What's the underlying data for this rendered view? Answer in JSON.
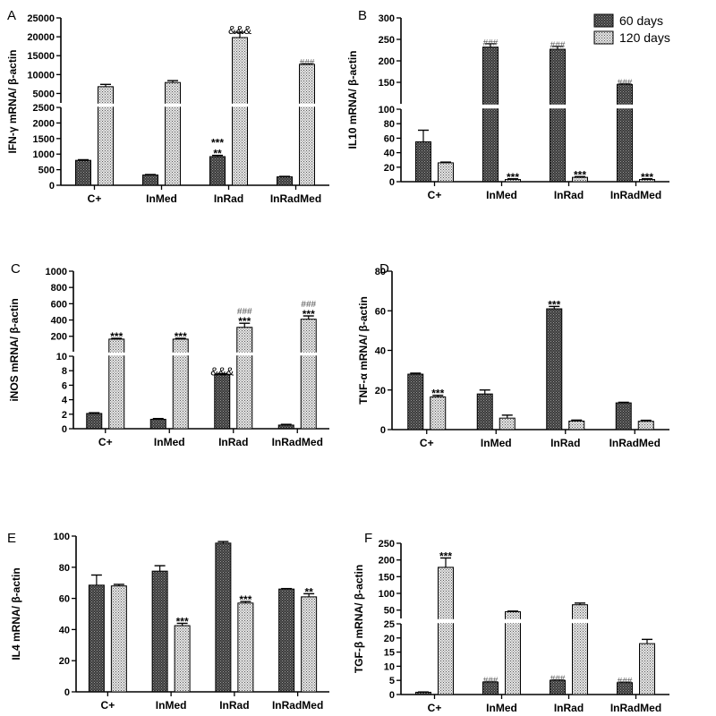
{
  "legend": [
    {
      "label": "60 days",
      "pattern": "dark"
    },
    {
      "label": "120 days",
      "pattern": "light"
    }
  ],
  "chart_data": [
    {
      "panel": "A",
      "type": "bar",
      "ylabel": "IFN-γ mRNA/ β-actin",
      "categories": [
        "C+",
        "InMed",
        "InRad",
        "InRadMed"
      ],
      "series": [
        {
          "name": "60 days",
          "values": [
            800,
            330,
            920,
            270
          ],
          "errors": [
            20,
            15,
            40,
            15
          ]
        },
        {
          "name": "120 days",
          "values": [
            6800,
            7900,
            19800,
            12700
          ],
          "errors": [
            600,
            500,
            1400,
            200
          ]
        }
      ],
      "axis_break": {
        "lower": [
          0,
          2500
        ],
        "upper": [
          2500,
          25000
        ]
      },
      "yticks_lower": [
        0,
        500,
        1000,
        1500,
        2000,
        2500
      ],
      "yticks_upper": [
        5000,
        10000,
        15000,
        20000,
        25000
      ],
      "annotations": [
        {
          "category": "InRad",
          "series": "60 days",
          "lines": [
            "***",
            "**"
          ]
        },
        {
          "category": "InRad",
          "series": "120 days",
          "lines": [
            "&&&"
          ]
        },
        {
          "category": "InRadMed",
          "series": "120 days",
          "lines": [
            "###"
          ]
        }
      ]
    },
    {
      "panel": "B",
      "type": "bar",
      "ylabel": "IL10 mRNA/ β-actin",
      "categories": [
        "C+",
        "InMed",
        "InRad",
        "InRadMed"
      ],
      "series": [
        {
          "name": "60 days",
          "values": [
            55,
            232,
            227,
            145
          ],
          "errors": [
            16,
            8,
            7,
            2
          ]
        },
        {
          "name": "120 days",
          "values": [
            26,
            3,
            6,
            3
          ],
          "errors": [
            1,
            1,
            1,
            1
          ]
        }
      ],
      "axis_break": {
        "lower": [
          0,
          100
        ],
        "upper": [
          100,
          300
        ]
      },
      "yticks_lower": [
        0,
        20,
        40,
        60,
        80,
        100
      ],
      "yticks_upper": [
        150,
        200,
        250,
        300
      ],
      "annotations": [
        {
          "category": "InMed",
          "series": "60 days",
          "lines": [
            "###"
          ]
        },
        {
          "category": "InMed",
          "series": "120 days",
          "lines": [
            "***"
          ]
        },
        {
          "category": "InRad",
          "series": "60 days",
          "lines": [
            "###"
          ]
        },
        {
          "category": "InRad",
          "series": "120 days",
          "lines": [
            "***"
          ]
        },
        {
          "category": "InRadMed",
          "series": "60 days",
          "lines": [
            "###"
          ]
        },
        {
          "category": "InRadMed",
          "series": "120 days",
          "lines": [
            "***"
          ]
        }
      ]
    },
    {
      "panel": "C",
      "type": "bar",
      "ylabel": "iNOS mRNA/ β-actin",
      "categories": [
        "C+",
        "InMed",
        "InRad",
        "InRadMed"
      ],
      "series": [
        {
          "name": "60 days",
          "values": [
            2.1,
            1.3,
            7.5,
            0.5
          ],
          "errors": [
            0.1,
            0.1,
            0.1,
            0.1
          ]
        },
        {
          "name": "120 days",
          "values": [
            165,
            165,
            310,
            410
          ],
          "errors": [
            10,
            10,
            50,
            40
          ]
        }
      ],
      "axis_break": {
        "lower": [
          0,
          10
        ],
        "upper": [
          10,
          1000
        ]
      },
      "yticks_lower": [
        0,
        2,
        4,
        6,
        8,
        10
      ],
      "yticks_upper": [
        200,
        400,
        600,
        800,
        1000
      ],
      "annotations": [
        {
          "category": "C+",
          "series": "120 days",
          "lines": [
            "***"
          ]
        },
        {
          "category": "InMed",
          "series": "120 days",
          "lines": [
            "***"
          ]
        },
        {
          "category": "InRad",
          "series": "60 days",
          "lines": [
            "&&&"
          ]
        },
        {
          "category": "InRad",
          "series": "120 days",
          "lines": [
            "###",
            "***"
          ]
        },
        {
          "category": "InRadMed",
          "series": "120 days",
          "lines": [
            "###",
            "***"
          ]
        }
      ]
    },
    {
      "panel": "D",
      "type": "bar",
      "ylabel": "TNF-α mRNA/ β-actin",
      "categories": [
        "C+",
        "InMed",
        "InRad",
        "InRadMed"
      ],
      "series": [
        {
          "name": "60 days",
          "values": [
            28,
            18,
            61,
            13.5
          ],
          "errors": [
            0.5,
            2,
            1.2,
            0.3
          ]
        },
        {
          "name": "120 days",
          "values": [
            16.5,
            5.8,
            4.3,
            4.2
          ],
          "errors": [
            0.8,
            1.5,
            0.5,
            0.5
          ]
        }
      ],
      "ylim": [
        0,
        80
      ],
      "yticks": [
        0,
        20,
        40,
        60,
        80
      ],
      "annotations": [
        {
          "category": "C+",
          "series": "120 days",
          "lines": [
            "***"
          ]
        },
        {
          "category": "InRad",
          "series": "60 days",
          "lines": [
            "***"
          ]
        }
      ]
    },
    {
      "panel": "E",
      "type": "bar",
      "ylabel": "IL4 mRNA/ β-actin",
      "categories": [
        "C+",
        "InMed",
        "InRad",
        "InRadMed"
      ],
      "series": [
        {
          "name": "60 days",
          "values": [
            68.5,
            77.5,
            95.5,
            66
          ],
          "errors": [
            6.5,
            3.5,
            1,
            0.3
          ]
        },
        {
          "name": "120 days",
          "values": [
            68,
            42.5,
            57,
            61
          ],
          "errors": [
            1,
            1.5,
            1,
            2
          ]
        }
      ],
      "ylim": [
        0,
        100
      ],
      "yticks": [
        0,
        20,
        40,
        60,
        80,
        100
      ],
      "annotations": [
        {
          "category": "InMed",
          "series": "120 days",
          "lines": [
            "***"
          ]
        },
        {
          "category": "InRad",
          "series": "120 days",
          "lines": [
            "***"
          ]
        },
        {
          "category": "InRadMed",
          "series": "120 days",
          "lines": [
            "**"
          ]
        }
      ]
    },
    {
      "panel": "F",
      "type": "bar",
      "ylabel": "TGF-β mRNA/ β-actin",
      "categories": [
        "C+",
        "InMed",
        "InRad",
        "InRadMed"
      ],
      "series": [
        {
          "name": "60 days",
          "values": [
            0.8,
            4.4,
            5,
            4.2
          ],
          "errors": [
            0.1,
            0.2,
            0.2,
            0.2
          ]
        },
        {
          "name": "120 days",
          "values": [
            178,
            45,
            66,
            18
          ],
          "errors": [
            28,
            2,
            5,
            1.5
          ]
        }
      ],
      "axis_break": {
        "lower": [
          0,
          25
        ],
        "upper": [
          25,
          250
        ]
      },
      "yticks_lower": [
        0,
        5,
        10,
        15,
        20,
        25
      ],
      "yticks_upper": [
        50,
        100,
        150,
        200,
        250
      ],
      "annotations": [
        {
          "category": "C+",
          "series": "120 days",
          "lines": [
            "***"
          ]
        },
        {
          "category": "InMed",
          "series": "60 days",
          "lines": [
            "###"
          ]
        },
        {
          "category": "InRad",
          "series": "60 days",
          "lines": [
            "###"
          ]
        },
        {
          "category": "InRadMed",
          "series": "60 days",
          "lines": [
            "###"
          ]
        }
      ]
    }
  ]
}
